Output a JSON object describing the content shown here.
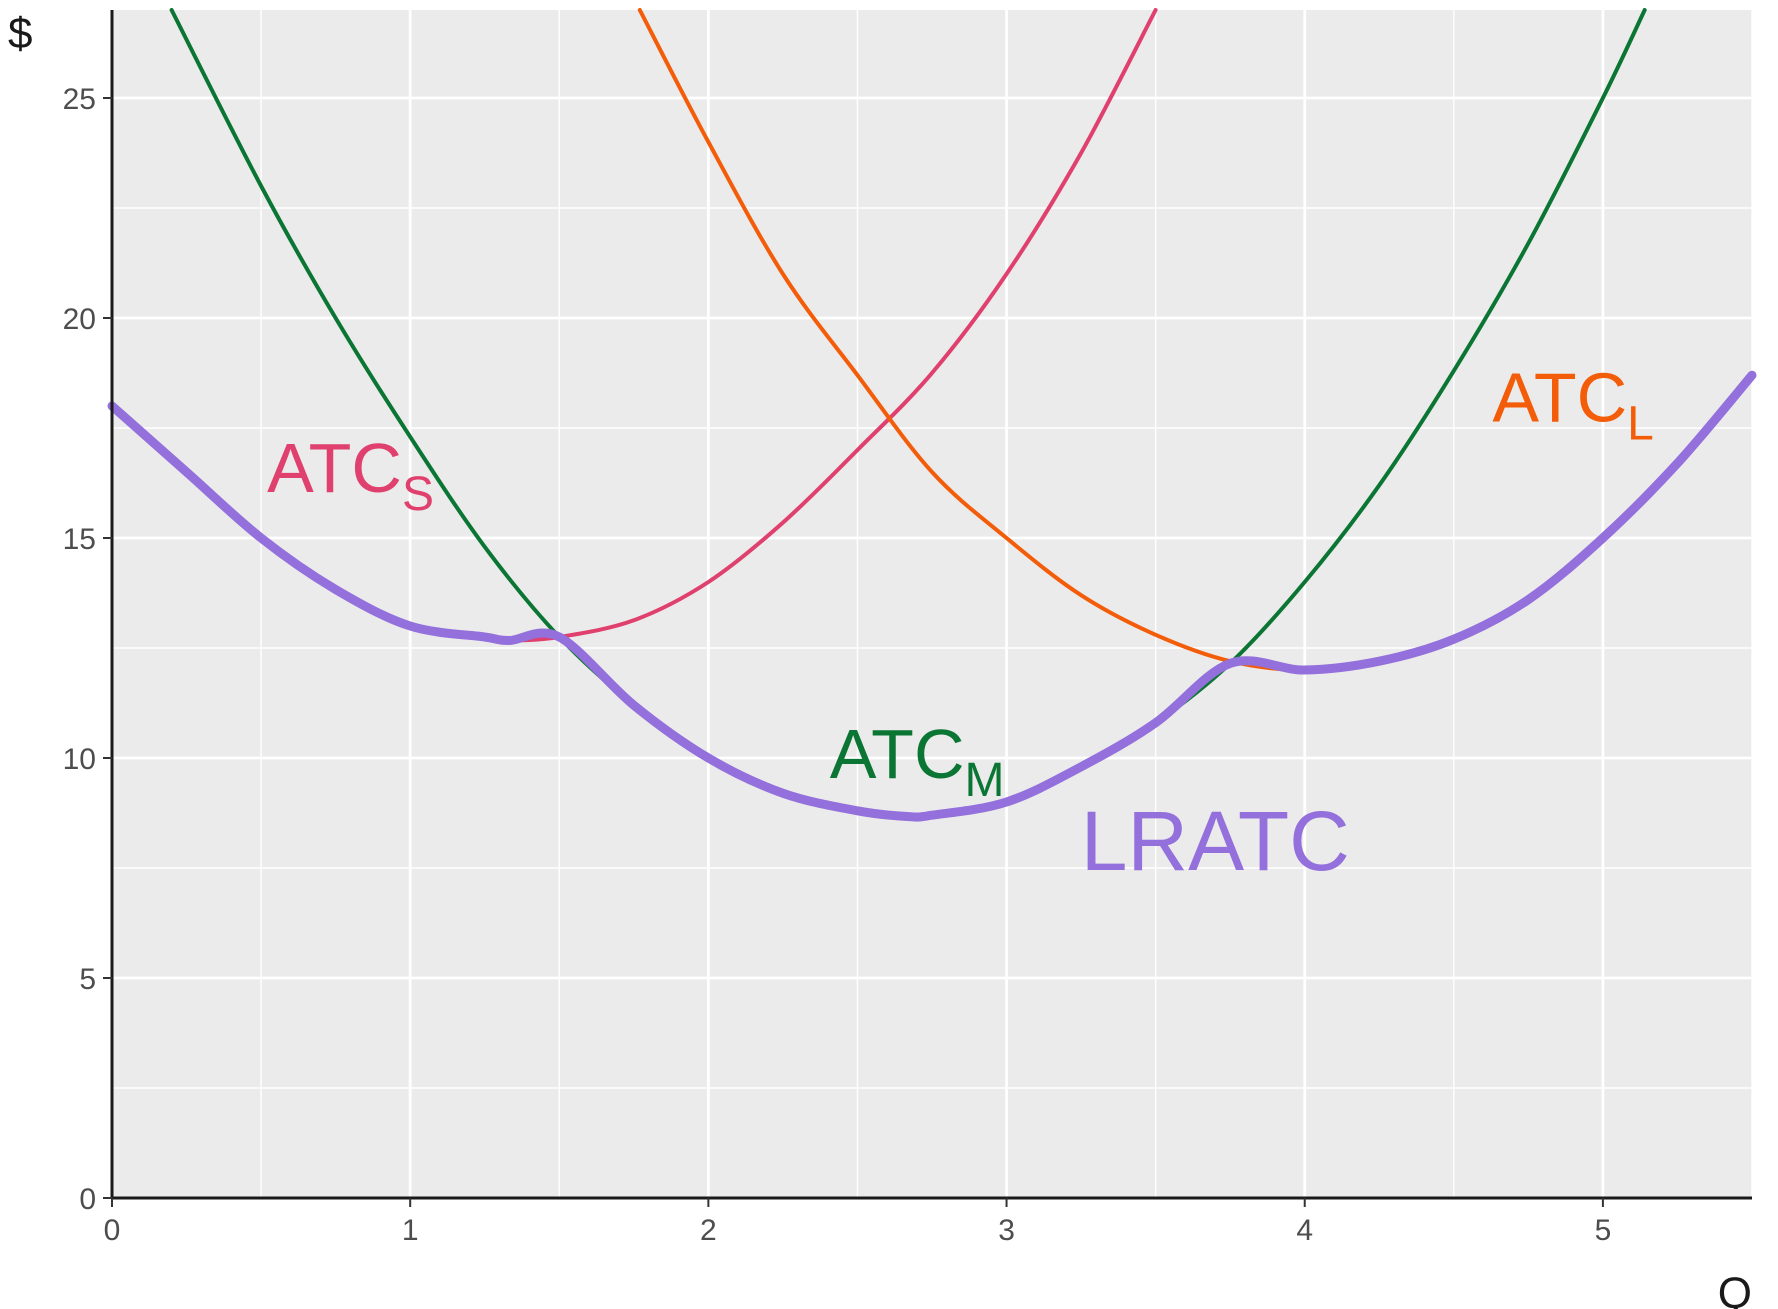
{
  "chart_data": {
    "type": "line",
    "xlabel": "Q",
    "ylabel": "$",
    "xlim": [
      0,
      5.5
    ],
    "ylim": [
      0,
      27
    ],
    "grid": true,
    "xticks": [
      0,
      1,
      2,
      3,
      4,
      5
    ],
    "yticks": [
      0,
      5,
      10,
      15,
      20,
      25
    ],
    "series": [
      {
        "key": "atcs",
        "name": "ATCS",
        "label_main": "ATC",
        "label_sub": "S",
        "color": "#e0406e",
        "x": [
          0.25,
          0.5,
          0.75,
          1.0,
          1.25,
          1.333,
          1.5,
          1.75,
          2.0,
          2.25,
          2.5,
          2.75,
          3.0,
          3.25,
          3.5
        ],
        "y": [
          16.5,
          15.0,
          13.83,
          13.0,
          12.75,
          12.67,
          12.75,
          13.13,
          14.0,
          15.35,
          17.0,
          18.75,
          21.0,
          23.75,
          27.0
        ]
      },
      {
        "key": "atcm",
        "name": "ATCM",
        "label_main": "ATC",
        "label_sub": "M",
        "color": "#0b7534",
        "x": [
          0.2,
          0.5,
          0.75,
          1.0,
          1.25,
          1.5,
          1.75,
          2.0,
          2.25,
          2.5,
          2.667,
          2.75,
          3.0,
          3.25,
          3.5,
          3.75,
          4.0,
          4.25,
          4.5,
          4.75,
          5.0,
          5.14
        ],
        "y": [
          27.0,
          23.0,
          20.0,
          17.3,
          14.8,
          12.75,
          11.2,
          10.0,
          9.2,
          8.8,
          8.67,
          8.7,
          9.0,
          9.8,
          10.8,
          12.15,
          14.0,
          16.2,
          18.8,
          21.7,
          25.0,
          27.0
        ]
      },
      {
        "key": "atcl",
        "name": "ATCL",
        "label_main": "ATC",
        "label_sub": "L",
        "color": "#f35d0a",
        "x": [
          1.77,
          2.0,
          2.25,
          2.5,
          2.75,
          3.0,
          3.25,
          3.5,
          3.75,
          4.0,
          4.25,
          4.5,
          4.75,
          5.0,
          5.25,
          5.5
        ],
        "y": [
          27.0,
          24.0,
          21.0,
          18.7,
          16.5,
          15.0,
          13.7,
          12.8,
          12.2,
          12.0,
          12.2,
          12.7,
          13.6,
          15.0,
          16.7,
          18.7
        ]
      },
      {
        "key": "lratc",
        "name": "LRATC",
        "label_main": "LRATC",
        "label_sub": "",
        "color": "#9370db",
        "x": [
          0.0,
          0.25,
          0.5,
          0.75,
          1.0,
          1.25,
          1.333,
          1.5,
          1.75,
          2.0,
          2.25,
          2.5,
          2.667,
          2.75,
          3.0,
          3.25,
          3.5,
          3.75,
          4.0,
          4.25,
          4.5,
          4.75,
          5.0,
          5.25,
          5.5
        ],
        "y": [
          18.0,
          16.5,
          15.0,
          13.83,
          13.0,
          12.75,
          12.67,
          12.75,
          11.2,
          10.0,
          9.2,
          8.8,
          8.67,
          8.7,
          9.0,
          9.8,
          10.8,
          12.15,
          12.0,
          12.2,
          12.7,
          13.6,
          15.0,
          16.7,
          18.7
        ]
      }
    ],
    "annotations": [
      {
        "series": "atcs",
        "x": 0.8,
        "y": 16.05
      },
      {
        "series": "atcm",
        "x": 2.7,
        "y": 9.55
      },
      {
        "series": "atcl",
        "x": 4.9,
        "y": 17.65
      },
      {
        "series": "lratc",
        "x": 3.7,
        "y": 7.45
      }
    ]
  }
}
